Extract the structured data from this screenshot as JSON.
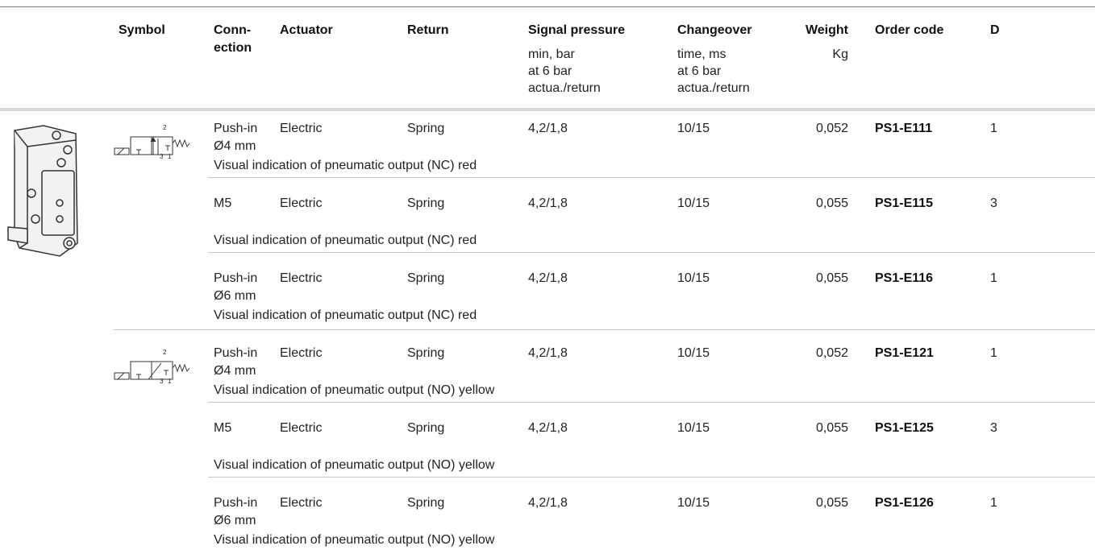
{
  "header": {
    "columns": [
      {
        "title": [
          "Symbol"
        ]
      },
      {
        "title": [
          "Conn-",
          "ection"
        ]
      },
      {
        "title": [
          "Actuator"
        ]
      },
      {
        "title": [
          "Return"
        ]
      },
      {
        "title": [
          "Signal pressure"
        ],
        "sub": [
          "min, bar",
          "at 6 bar",
          "actua./return"
        ]
      },
      {
        "title": [
          "Changeover"
        ],
        "sub": [
          "time, ms",
          "at 6 bar",
          "actua./return"
        ]
      },
      {
        "title": [
          "Weight"
        ],
        "sub": [
          "Kg"
        ]
      },
      {
        "title": [
          "Order code"
        ]
      },
      {
        "title": [
          "D"
        ]
      }
    ]
  },
  "groups": [
    {
      "symbol_ports": [
        "2",
        "3",
        "1"
      ],
      "rows": [
        {
          "connection": [
            "Push-in",
            "Ø4 mm"
          ],
          "actuator": "Electric",
          "return": "Spring",
          "signal_pressure": "4,2/1,8",
          "changeover": "10/15",
          "weight": "0,052",
          "order_code": "PS1-E111",
          "d": "1",
          "note": "Visual indication of pneumatic output (NC) red"
        },
        {
          "connection": [
            "M5"
          ],
          "actuator": "Electric",
          "return": "Spring",
          "signal_pressure": "4,2/1,8",
          "changeover": "10/15",
          "weight": "0,055",
          "order_code": "PS1-E115",
          "d": "3",
          "note": "Visual indication of pneumatic output (NC) red"
        },
        {
          "connection": [
            "Push-in",
            "Ø6 mm"
          ],
          "actuator": "Electric",
          "return": "Spring",
          "signal_pressure": "4,2/1,8",
          "changeover": "10/15",
          "weight": "0,055",
          "order_code": "PS1-E116",
          "d": "1",
          "note": "Visual indication of pneumatic output (NC) red"
        }
      ]
    },
    {
      "symbol_ports": [
        "2",
        "3",
        "1"
      ],
      "rows": [
        {
          "connection": [
            "Push-in",
            "Ø4 mm"
          ],
          "actuator": "Electric",
          "return": "Spring",
          "signal_pressure": "4,2/1,8",
          "changeover": "10/15",
          "weight": "0,052",
          "order_code": "PS1-E121",
          "d": "1",
          "note": "Visual indication of pneumatic output (NO) yellow"
        },
        {
          "connection": [
            "M5"
          ],
          "actuator": "Electric",
          "return": "Spring",
          "signal_pressure": "4,2/1,8",
          "changeover": "10/15",
          "weight": "0,055",
          "order_code": "PS1-E125",
          "d": "3",
          "note": "Visual indication of pneumatic output (NO) yellow"
        },
        {
          "connection": [
            "Push-in",
            "Ø6 mm"
          ],
          "actuator": "Electric",
          "return": "Spring",
          "signal_pressure": "4,2/1,8",
          "changeover": "10/15",
          "weight": "0,055",
          "order_code": "PS1-E126",
          "d": "1",
          "note": "Visual indication of pneumatic output (NO) yellow"
        }
      ]
    }
  ]
}
